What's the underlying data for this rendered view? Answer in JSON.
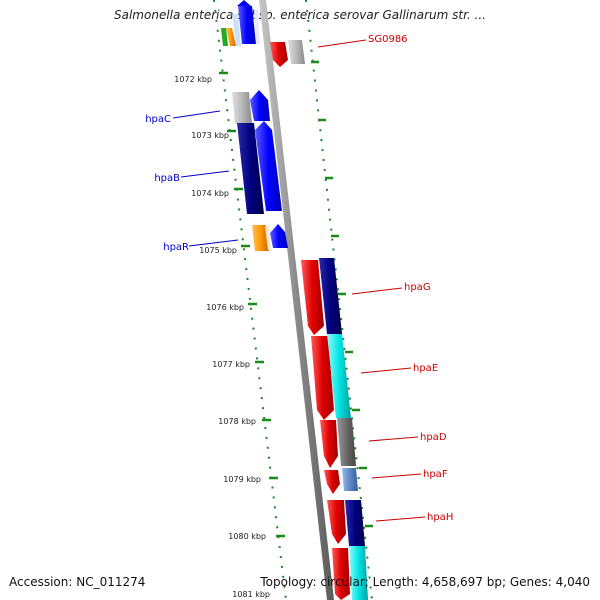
{
  "title": "Salmonella enterica subsp. enterica serovar Gallinarum str. ...",
  "footer": {
    "accession": "Accession: NC_011274",
    "summary": "Topology: circular; Length: 4,658,697 bp; Genes: 4,040"
  },
  "ruler": {
    "unit": "kbp",
    "ticks": [
      "1072 kbp",
      "1073 kbp",
      "1074 kbp",
      "1075 kbp",
      "1076 kbp",
      "1077 kbp",
      "1078 kbp",
      "1079 kbp",
      "1080 kbp",
      "1081 kbp"
    ]
  },
  "gene_labels": {
    "forward": [
      "hpaC",
      "hpaB",
      "hpaR"
    ],
    "reverse": [
      "SG0986",
      "hpaG",
      "hpaE",
      "hpaD",
      "hpaF",
      "hpaH"
    ]
  },
  "colors": {
    "forward_label": "#0000cc",
    "reverse_label": "#cc0000",
    "backbone": "#8a8a8a",
    "ruler_dots": "#1a8a1a",
    "gene_red": "#e00000",
    "gene_blue": "#0000ff",
    "gene_navy": "#000080",
    "gene_grey": "#b0b0b0",
    "gene_cyan": "#00e5e5",
    "gene_dark_grey": "#6a6a6a",
    "gene_orange": "#ff9900",
    "gene_steel": "#5b86c5",
    "gene_green": "#22aa22"
  }
}
